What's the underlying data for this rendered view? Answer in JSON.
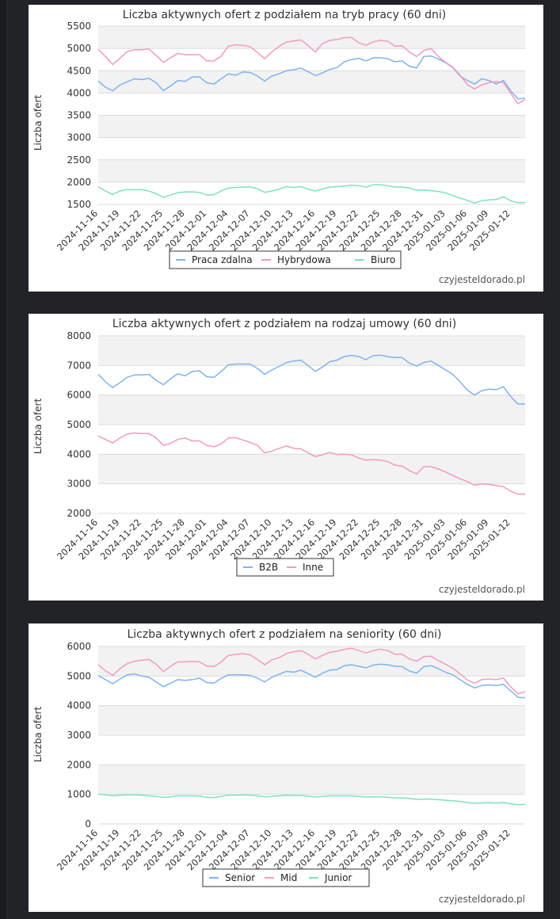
{
  "colors": {
    "page_bg": "#212326",
    "panel_bg": "#ffffff",
    "band": "#f2f2f2",
    "blue": "#7fb3f0",
    "pink": "#f49ac1",
    "green": "#7ee2c1"
  },
  "brand": "czyjesteldorado.pl",
  "chart_data": [
    {
      "type": "line",
      "title": "Liczba aktywnych ofert z podziałem na tryb pracy (60 dni)",
      "ylabel": "Liczba ofert",
      "xlabel": "",
      "ylim": [
        1500,
        5500
      ],
      "yticks": [
        "5500",
        "5000",
        "4500",
        "4000",
        "3500",
        "3000",
        "2500",
        "2000",
        "1500"
      ],
      "xticks": [
        "2024-11-16",
        "2024-11-19",
        "2024-11-22",
        "2024-11-25",
        "2024-11-28",
        "2024-12-01",
        "2024-12-04",
        "2024-12-07",
        "2024-12-10",
        "2024-12-13",
        "2024-12-16",
        "2024-12-19",
        "2024-12-22",
        "2024-12-25",
        "2024-12-28",
        "2024-12-31",
        "2025-01-03",
        "2025-01-06",
        "2025-01-09",
        "2025-01-12"
      ],
      "x_start": "2024-11-16",
      "num_points": 60,
      "series": [
        {
          "name": "Praca zdalna",
          "color": "#7fb3f0",
          "values": [
            4270,
            4130,
            4050,
            4180,
            4250,
            4320,
            4300,
            4330,
            4230,
            4050,
            4160,
            4280,
            4260,
            4360,
            4360,
            4230,
            4200,
            4320,
            4430,
            4400,
            4470,
            4460,
            4380,
            4270,
            4380,
            4430,
            4500,
            4520,
            4560,
            4480,
            4390,
            4450,
            4530,
            4570,
            4700,
            4750,
            4780,
            4720,
            4790,
            4790,
            4770,
            4700,
            4720,
            4600,
            4560,
            4820,
            4830,
            4760,
            4680,
            4570,
            4380,
            4280,
            4200,
            4320,
            4280,
            4200,
            4280,
            4050,
            3870,
            3880
          ]
        },
        {
          "name": "Hybrydowa",
          "color": "#f49ac1",
          "values": [
            4980,
            4820,
            4640,
            4780,
            4930,
            4970,
            4970,
            4990,
            4840,
            4690,
            4790,
            4890,
            4860,
            4860,
            4860,
            4720,
            4720,
            4830,
            5050,
            5080,
            5070,
            5040,
            4910,
            4770,
            4920,
            5050,
            5140,
            5170,
            5190,
            5070,
            4920,
            5110,
            5180,
            5200,
            5240,
            5250,
            5130,
            5070,
            5150,
            5180,
            5160,
            5050,
            5060,
            4920,
            4820,
            4950,
            5000,
            4820,
            4690,
            4580,
            4400,
            4190,
            4090,
            4180,
            4230,
            4260,
            4230,
            4000,
            3760,
            3850
          ]
        },
        {
          "name": "Biuro",
          "color": "#7ee2c1",
          "values": [
            1900,
            1800,
            1720,
            1800,
            1830,
            1830,
            1830,
            1800,
            1740,
            1660,
            1710,
            1760,
            1780,
            1780,
            1770,
            1710,
            1720,
            1800,
            1870,
            1880,
            1890,
            1890,
            1850,
            1770,
            1800,
            1840,
            1900,
            1880,
            1900,
            1840,
            1800,
            1850,
            1890,
            1900,
            1910,
            1930,
            1920,
            1890,
            1940,
            1940,
            1920,
            1890,
            1890,
            1870,
            1820,
            1820,
            1810,
            1790,
            1760,
            1700,
            1640,
            1590,
            1530,
            1580,
            1600,
            1610,
            1670,
            1580,
            1540,
            1540
          ]
        }
      ]
    },
    {
      "type": "line",
      "title": "Liczba aktywnych ofert z podziałem na rodzaj umowy (60 dni)",
      "ylabel": "Liczba ofert",
      "xlabel": "",
      "ylim": [
        2000,
        8000
      ],
      "yticks": [
        "8000",
        "7000",
        "6000",
        "5000",
        "4000",
        "3000",
        "2000"
      ],
      "xticks": [
        "2024-11-16",
        "2024-11-19",
        "2024-11-22",
        "2024-11-25",
        "2024-11-28",
        "2024-12-01",
        "2024-12-04",
        "2024-12-07",
        "2024-12-10",
        "2024-12-13",
        "2024-12-16",
        "2024-12-19",
        "2024-12-22",
        "2024-12-25",
        "2024-12-28",
        "2024-12-31",
        "2025-01-03",
        "2025-01-06",
        "2025-01-09",
        "2025-01-12"
      ],
      "x_start": "2024-11-16",
      "num_points": 60,
      "series": [
        {
          "name": "B2B",
          "color": "#7fb3f0",
          "values": [
            6700,
            6450,
            6250,
            6420,
            6600,
            6680,
            6680,
            6700,
            6500,
            6350,
            6550,
            6720,
            6650,
            6800,
            6820,
            6620,
            6600,
            6800,
            7020,
            7050,
            7050,
            7050,
            6900,
            6700,
            6850,
            6970,
            7100,
            7150,
            7180,
            7000,
            6800,
            6950,
            7130,
            7180,
            7300,
            7340,
            7300,
            7200,
            7330,
            7350,
            7300,
            7270,
            7270,
            7080,
            6980,
            7100,
            7150,
            7000,
            6850,
            6700,
            6450,
            6170,
            6000,
            6150,
            6200,
            6180,
            6280,
            5950,
            5700,
            5700
          ]
        },
        {
          "name": "Inne",
          "color": "#f49ac1",
          "values": [
            4620,
            4500,
            4380,
            4550,
            4680,
            4720,
            4700,
            4700,
            4550,
            4300,
            4370,
            4500,
            4550,
            4450,
            4450,
            4300,
            4250,
            4350,
            4550,
            4560,
            4480,
            4400,
            4300,
            4050,
            4100,
            4200,
            4280,
            4200,
            4180,
            4050,
            3920,
            3980,
            4060,
            3990,
            4000,
            3980,
            3870,
            3800,
            3820,
            3800,
            3750,
            3630,
            3600,
            3450,
            3330,
            3580,
            3580,
            3500,
            3400,
            3280,
            3170,
            3080,
            2950,
            3000,
            2980,
            2940,
            2900,
            2750,
            2650,
            2650
          ]
        }
      ]
    },
    {
      "type": "line",
      "title": "Liczba aktywnych ofert z podziałem na seniority (60 dni)",
      "ylabel": "Liczba ofert",
      "xlabel": "",
      "ylim": [
        0,
        6000
      ],
      "yticks": [
        "6000",
        "5000",
        "4000",
        "3000",
        "2000",
        "1000",
        "0"
      ],
      "xticks": [
        "2024-11-16",
        "2024-11-19",
        "2024-11-22",
        "2024-11-25",
        "2024-11-28",
        "2024-12-01",
        "2024-12-04",
        "2024-12-07",
        "2024-12-10",
        "2024-12-13",
        "2024-12-16",
        "2024-12-19",
        "2024-12-22",
        "2024-12-25",
        "2024-12-28",
        "2024-12-31",
        "2025-01-03",
        "2025-01-06",
        "2025-01-09",
        "2025-01-12"
      ],
      "x_start": "2024-11-16",
      "num_points": 60,
      "series": [
        {
          "name": "Senior",
          "color": "#7fb3f0",
          "values": [
            5020,
            4880,
            4740,
            4900,
            5040,
            5070,
            5000,
            4960,
            4800,
            4640,
            4760,
            4880,
            4850,
            4880,
            4930,
            4780,
            4760,
            4920,
            5040,
            5040,
            5040,
            5020,
            4930,
            4800,
            4960,
            5060,
            5160,
            5130,
            5200,
            5080,
            4960,
            5100,
            5200,
            5220,
            5350,
            5380,
            5330,
            5280,
            5370,
            5400,
            5380,
            5330,
            5320,
            5170,
            5100,
            5320,
            5350,
            5250,
            5130,
            5040,
            4880,
            4720,
            4600,
            4680,
            4700,
            4680,
            4720,
            4500,
            4280,
            4270
          ]
        },
        {
          "name": "Mid",
          "color": "#f49ac1",
          "values": [
            5380,
            5180,
            5020,
            5250,
            5420,
            5500,
            5540,
            5560,
            5400,
            5150,
            5330,
            5480,
            5480,
            5500,
            5480,
            5340,
            5320,
            5480,
            5700,
            5730,
            5760,
            5720,
            5560,
            5380,
            5550,
            5620,
            5760,
            5820,
            5860,
            5740,
            5580,
            5700,
            5800,
            5840,
            5900,
            5940,
            5860,
            5780,
            5860,
            5910,
            5860,
            5740,
            5740,
            5580,
            5500,
            5660,
            5670,
            5520,
            5400,
            5270,
            5070,
            4870,
            4760,
            4880,
            4900,
            4880,
            4930,
            4640,
            4400,
            4470
          ]
        },
        {
          "name": "Junior",
          "color": "#7ee2c1",
          "values": [
            1010,
            980,
            950,
            970,
            980,
            980,
            970,
            950,
            930,
            900,
            920,
            950,
            950,
            950,
            940,
            900,
            890,
            930,
            970,
            970,
            980,
            970,
            950,
            920,
            930,
            950,
            970,
            960,
            960,
            940,
            910,
            930,
            950,
            950,
            950,
            950,
            930,
            910,
            920,
            920,
            900,
            880,
            880,
            860,
            830,
            840,
            840,
            820,
            800,
            780,
            760,
            720,
            700,
            710,
            720,
            710,
            720,
            680,
            650,
            660
          ]
        }
      ]
    }
  ]
}
